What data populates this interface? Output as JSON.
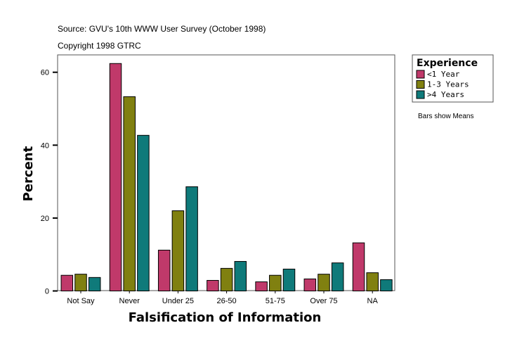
{
  "header": {
    "source": "Source: GVU's 10th WWW User Survey (October 1998)",
    "copyright": "Copyright 1998 GTRC"
  },
  "note": "Bars show Means",
  "chart_data": {
    "type": "bar",
    "xlabel": "Falsification of Information",
    "ylabel": "Percent",
    "ylim": [
      0,
      65
    ],
    "yticks": [
      0,
      20,
      40,
      60
    ],
    "grid": false,
    "legend_title": "Experience",
    "legend_position": "right",
    "categories": [
      "Not Say",
      "Never",
      "Under 25",
      "26-50",
      "51-75",
      "Over 75",
      "NA"
    ],
    "series": [
      {
        "name": "<1 Year",
        "color": "#c0396a",
        "values": [
          4.3,
          62.4,
          11.2,
          2.9,
          2.5,
          3.3,
          13.2
        ]
      },
      {
        "name": "1-3 Years",
        "color": "#808010",
        "values": [
          4.6,
          53.3,
          22.0,
          6.2,
          4.3,
          4.6,
          5.0
        ]
      },
      {
        "name": ">4 Years",
        "color": "#0f7a7a",
        "values": [
          3.7,
          42.7,
          28.6,
          8.1,
          6.0,
          7.7,
          3.1
        ]
      }
    ]
  }
}
